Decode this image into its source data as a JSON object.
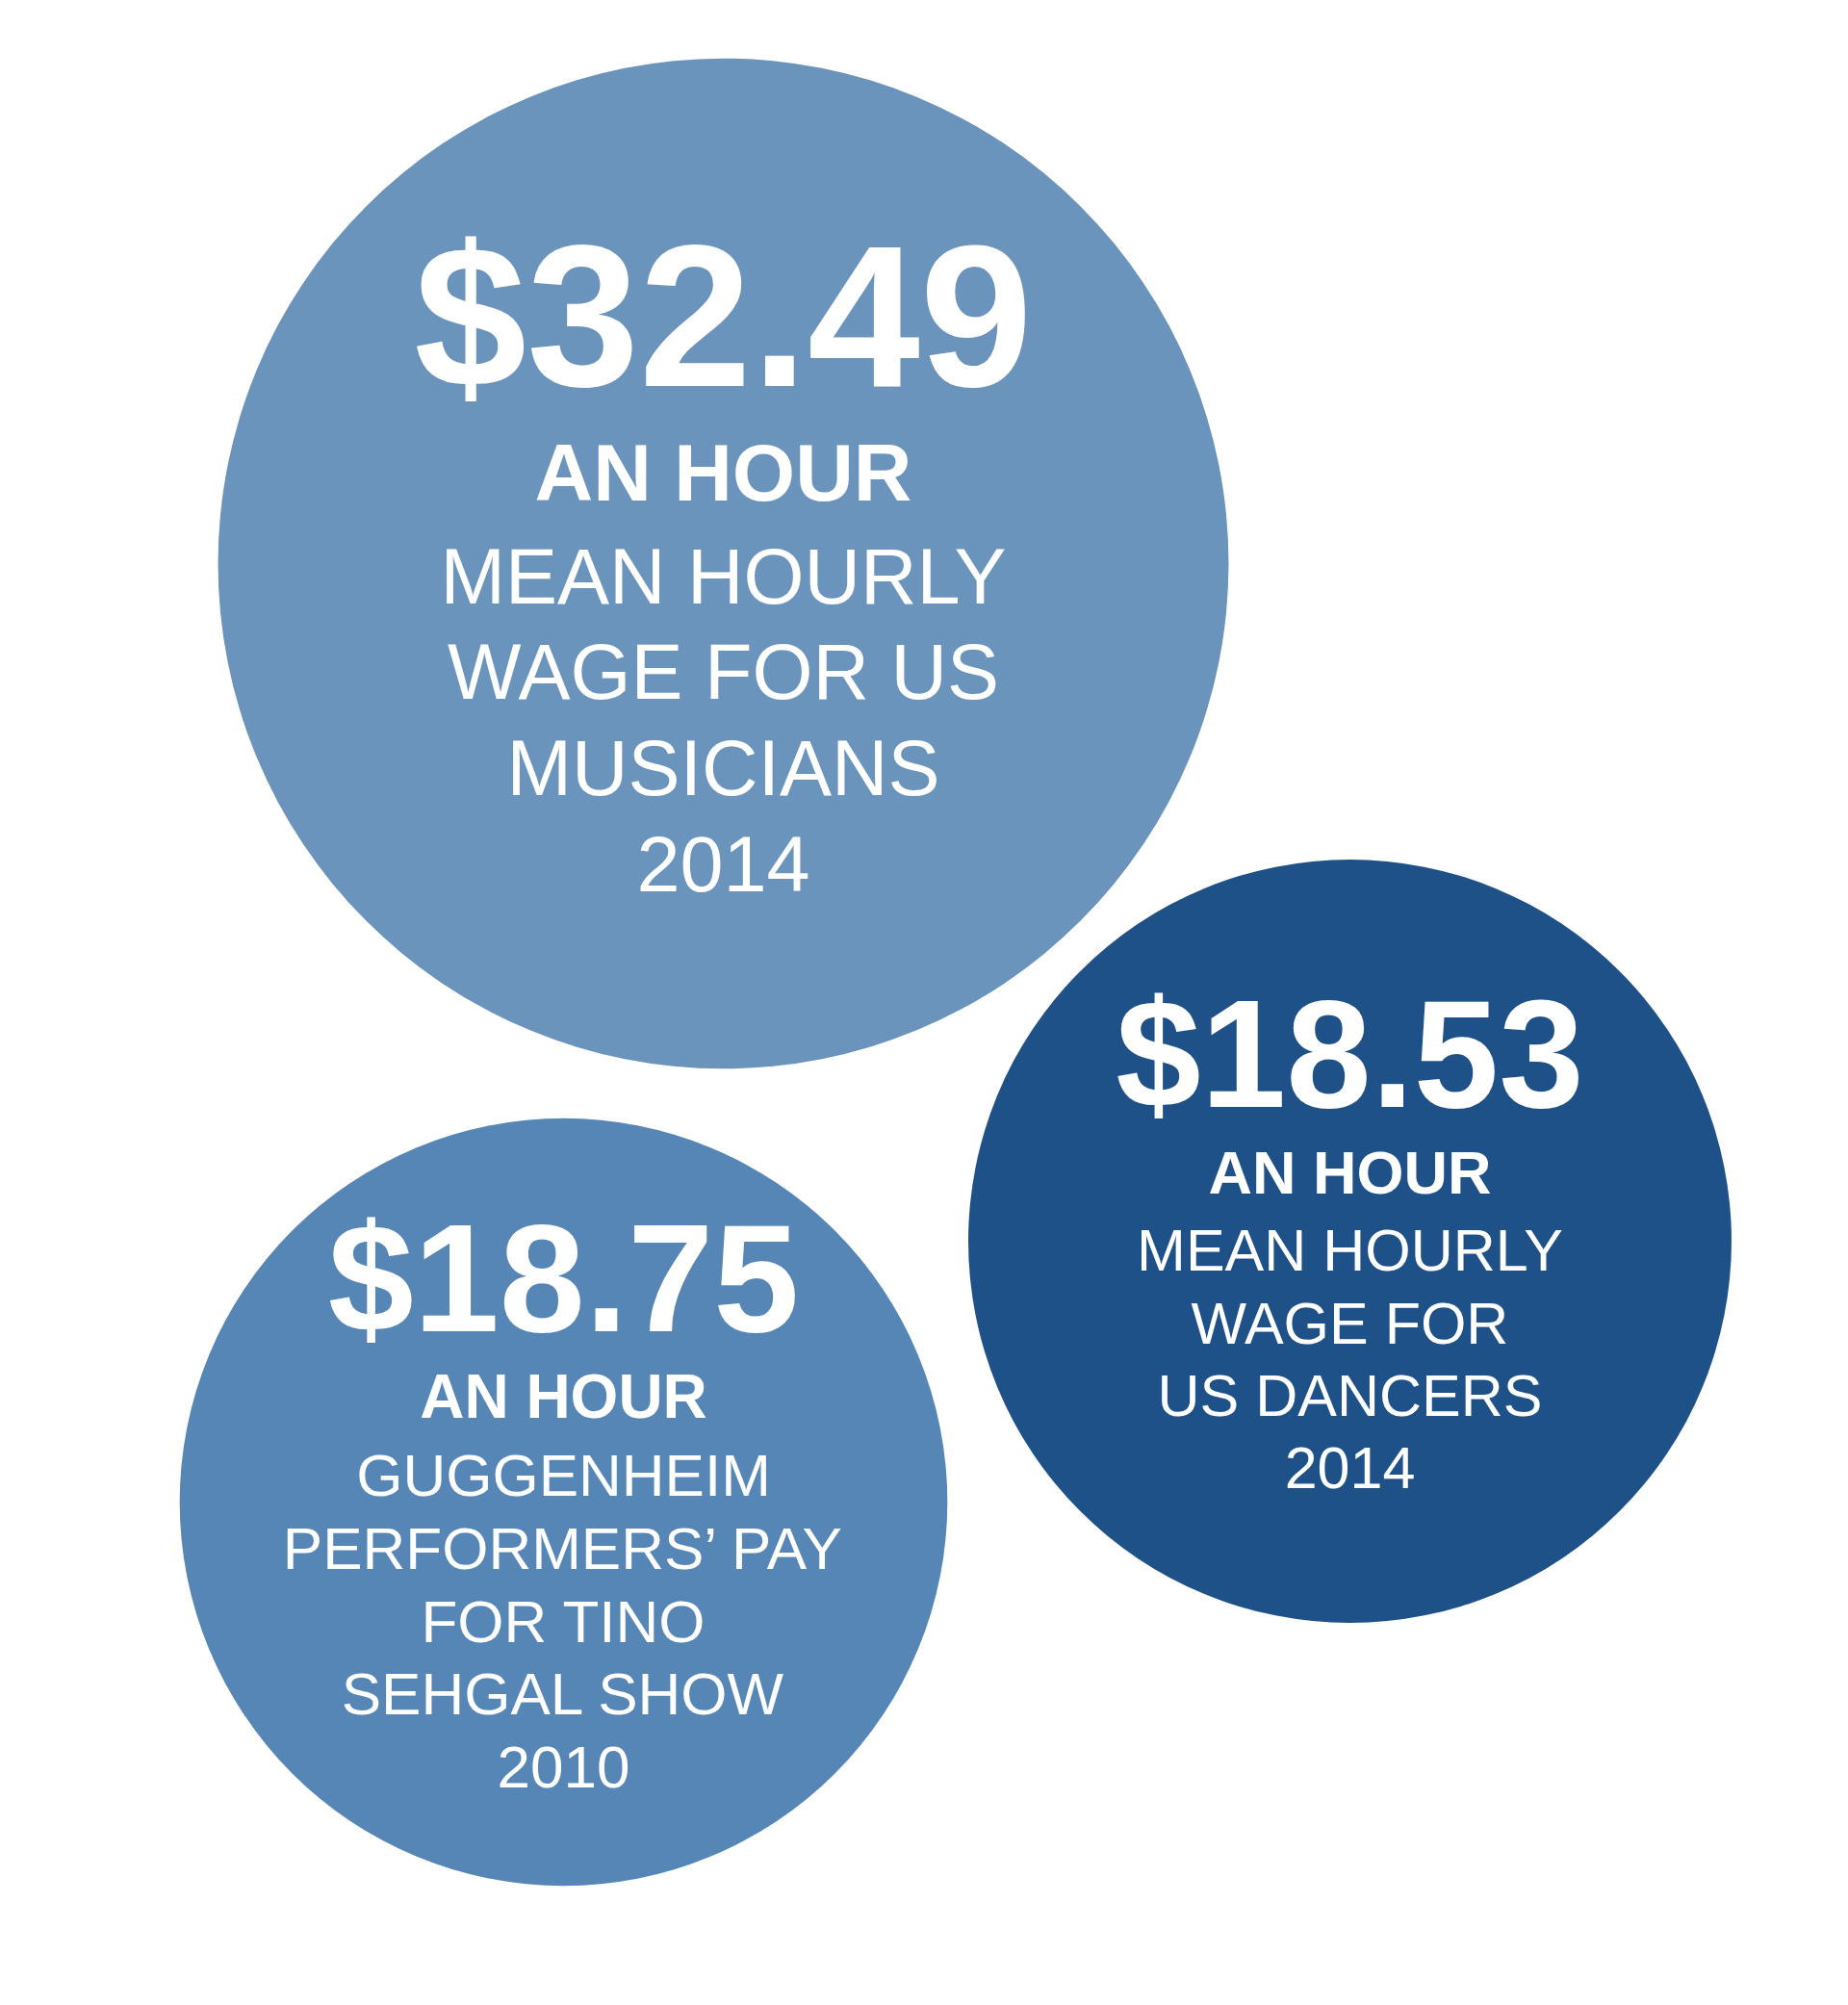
{
  "chart_data": {
    "type": "other",
    "categories": [
      "MEAN HOURLY\nWAGE FOR US\nMUSICIANS\n2014",
      "GUGGENHEIM\nPERFORMERS’ PAY\nFOR TINO\nSEHGAL SHOW\n2010",
      "MEAN HOURLY\nWAGE FOR\nUS DANCERS\n2014"
    ],
    "values": [
      32.49,
      18.75,
      18.53
    ],
    "value_labels": [
      "$32.49",
      "$18.75",
      "$18.53"
    ],
    "annotations": [
      "AN HOUR",
      "AN HOUR",
      "AN HOUR"
    ],
    "colors": [
      "#6b94bd",
      "#5686b6",
      "#1f5189"
    ]
  }
}
